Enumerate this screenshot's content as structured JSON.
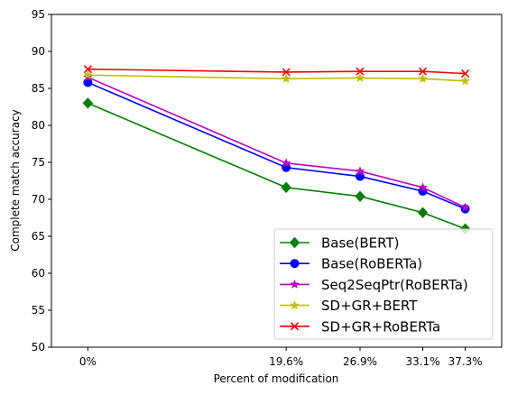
{
  "chart_data": {
    "type": "line",
    "xlabel": "Percent of modification",
    "ylabel": "Complete match accuracy",
    "x": [
      0,
      19.6,
      26.9,
      33.1,
      37.3
    ],
    "x_tick_labels": [
      "0%",
      "19.6%",
      "26.9%",
      "33.1%",
      "37.3%"
    ],
    "ylim": [
      50,
      95
    ],
    "y_ticks": [
      50,
      55,
      60,
      65,
      70,
      75,
      80,
      85,
      90,
      95
    ],
    "grid": false,
    "legend_position": "lower-right",
    "series": [
      {
        "name": "Base(BERT)",
        "color": "#008000",
        "marker": "diamond",
        "values": [
          83.0,
          71.6,
          70.4,
          68.2,
          66.0
        ]
      },
      {
        "name": "Base(RoBERTa)",
        "color": "#0000ff",
        "marker": "circle",
        "values": [
          85.8,
          74.3,
          73.1,
          71.1,
          68.7
        ]
      },
      {
        "name": "Seq2SeqPtr(RoBERTa)",
        "color": "#bf00bf",
        "marker": "star",
        "values": [
          86.5,
          74.9,
          73.8,
          71.6,
          68.9
        ]
      },
      {
        "name": "SD+GR+BERT",
        "color": "#bfbf00",
        "marker": "star",
        "values": [
          86.8,
          86.3,
          86.4,
          86.3,
          86.0
        ]
      },
      {
        "name": "SD+GR+RoBERTa",
        "color": "#ff0000",
        "marker": "x",
        "values": [
          87.6,
          87.2,
          87.3,
          87.3,
          87.0
        ]
      }
    ]
  }
}
